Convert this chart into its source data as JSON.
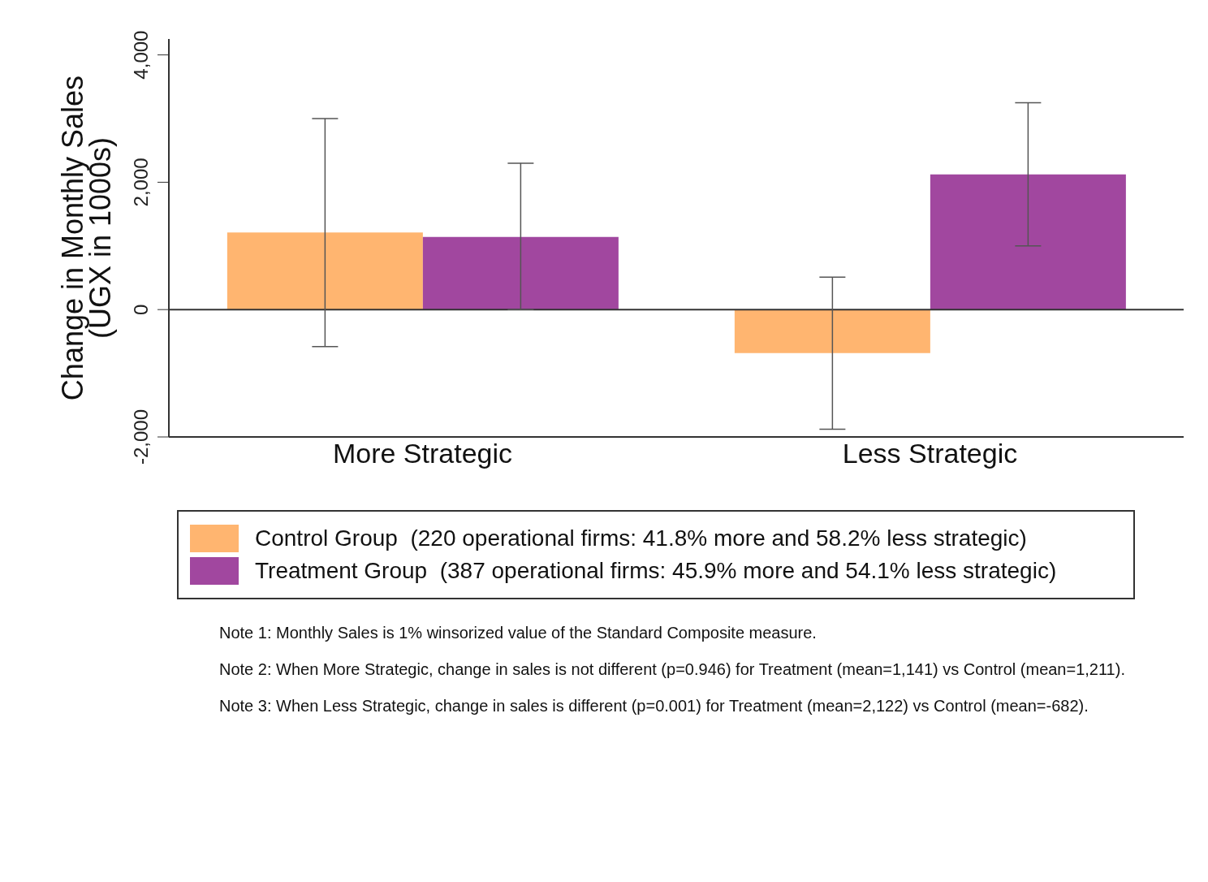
{
  "chart_data": {
    "type": "bar",
    "ylabel": "Change in Monthly Sales\n(UGX in 1000s)",
    "categories": [
      "More Strategic",
      "Less Strategic"
    ],
    "series": [
      {
        "name": "Control Group  (220 operational firms: 41.8% more and 58.2% less strategic)",
        "color": "#ffb570",
        "values": [
          1211,
          -682
        ],
        "errors": [
          [
            -580,
            3000
          ],
          [
            -1880,
            510
          ]
        ]
      },
      {
        "name": "Treatment Group  (387 operational firms: 45.9% more and 54.1% less strategic)",
        "color": "#a1479f",
        "values": [
          1141,
          2122
        ],
        "errors": [
          [
            0,
            2300
          ],
          [
            1000,
            3250
          ]
        ]
      }
    ],
    "ylim": [
      -2000,
      4250
    ],
    "yticks": [
      {
        "value": -2000,
        "label": "-2,000"
      },
      0,
      {
        "value": 2000,
        "label": "2,000"
      },
      {
        "value": 4000,
        "label": "4,000"
      }
    ],
    "ref_lines": [
      {
        "axis": "y",
        "value": 0
      }
    ],
    "grid": false,
    "legend": "bottom",
    "annotations": [
      "Note 1: Monthly Sales is 1% winsorized value of the Standard Composite measure.",
      "Note 2: When More Strategic, change in sales is not different (p=0.946) for Treatment (mean=1,141) vs Control (mean=1,211).",
      "Note 3: When Less Strategic, change in sales is different (p=0.001) for Treatment (mean=2,122) vs Control (mean=-682)."
    ]
  }
}
